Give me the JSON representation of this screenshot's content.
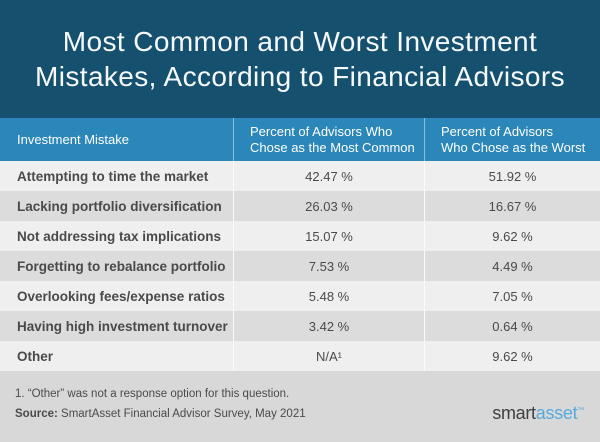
{
  "title": {
    "line1": "Most Common and Worst Investment",
    "line2": "Mistakes, According to Financial Advisors"
  },
  "table": {
    "headers": {
      "col1": "Investment Mistake",
      "col2_line1": "Percent of Advisors Who",
      "col2_line2": "Chose as the Most Common",
      "col3_line1": "Percent of Advisors",
      "col3_line2": "Who Chose as the Worst"
    },
    "rows": [
      {
        "mistake": "Attempting to time the market",
        "most_common": "42.47 %",
        "worst": "51.92 %"
      },
      {
        "mistake": "Lacking portfolio diversification",
        "most_common": "26.03 %",
        "worst": "16.67 %"
      },
      {
        "mistake": "Not addressing tax implications",
        "most_common": "15.07 %",
        "worst": "9.62 %"
      },
      {
        "mistake": "Forgetting to rebalance portfolio",
        "most_common": "7.53 %",
        "worst": "4.49 %"
      },
      {
        "mistake": "Overlooking fees/expense ratios",
        "most_common": "5.48 %",
        "worst": "7.05 %"
      },
      {
        "mistake": "Having high investment turnover",
        "most_common": "3.42 %",
        "worst": "0.64 %"
      },
      {
        "mistake": "Other",
        "most_common": "N/A¹",
        "worst": "9.62 %"
      }
    ]
  },
  "footer": {
    "footnote": "1. “Other” was not a response option for this question.",
    "source_label": "Source:",
    "source_text": " SmartAsset Financial Advisor Survey, May 2021",
    "logo_part1": "smart",
    "logo_part2": "asset",
    "logo_tm": "™"
  },
  "colors": {
    "title_bg": "#15506F",
    "header_bg": "#2B87B9",
    "row_light": "#EFEFEF",
    "row_dark": "#DCDCDC",
    "footer_bg": "#D8D8D8",
    "text_dark": "#4A4A4A",
    "text_white": "#FFFFFF",
    "logo_gray": "#3E3E3E",
    "logo_blue": "#55AADC"
  },
  "chart_data": {
    "type": "table",
    "title": "Most Common and Worst Investment Mistakes, According to Financial Advisors",
    "columns": [
      "Investment Mistake",
      "Percent of Advisors Who Chose as the Most Common",
      "Percent of Advisors Who Chose as the Worst"
    ],
    "rows": [
      [
        "Attempting to time the market",
        "42.47 %",
        "51.92 %"
      ],
      [
        "Lacking portfolio diversification",
        "26.03 %",
        "16.67 %"
      ],
      [
        "Not addressing tax implications",
        "15.07 %",
        "9.62 %"
      ],
      [
        "Forgetting to rebalance portfolio",
        "7.53 %",
        "4.49 %"
      ],
      [
        "Overlooking fees/expense ratios",
        "5.48 %",
        "7.05 %"
      ],
      [
        "Having high investment turnover",
        "3.42 %",
        "0.64 %"
      ],
      [
        "Other",
        "N/A¹",
        "9.62 %"
      ]
    ],
    "footnote": "1. “Other” was not a response option for this question.",
    "source": "Source: SmartAsset Financial Advisor Survey, May 2021"
  }
}
